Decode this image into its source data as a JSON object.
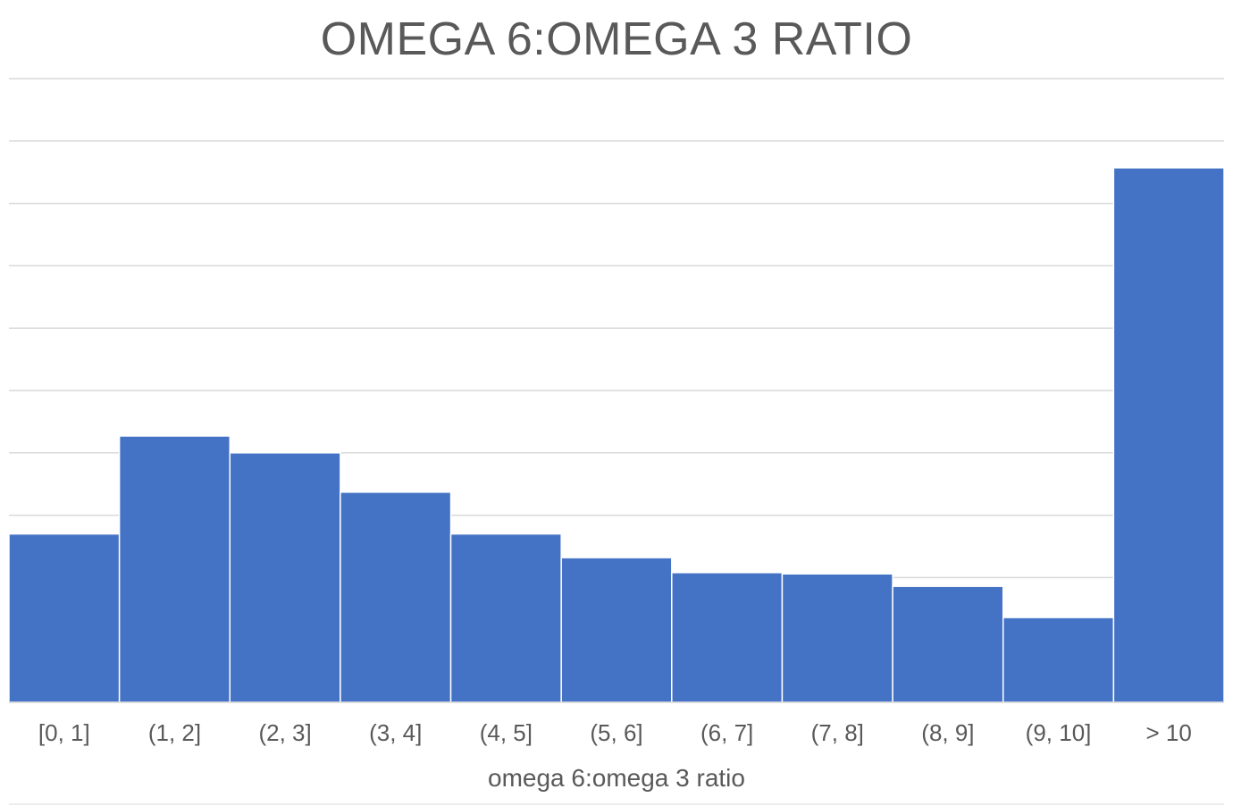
{
  "chart_data": {
    "type": "bar",
    "title": "OMEGA 6:OMEGA 3 RATIO",
    "xlabel": "omega 6:omega 3 ratio",
    "ylabel": "",
    "categories": [
      "[0, 1]",
      "(1, 2]",
      "(2, 3]",
      "(3, 4]",
      "(4, 5]",
      "(5, 6]",
      "(6, 7]",
      "(7, 8]",
      "(8, 9]",
      "(9, 10]",
      "> 10"
    ],
    "values": [
      2.7,
      4.27,
      4.0,
      3.37,
      2.7,
      2.32,
      2.08,
      2.06,
      1.86,
      1.36,
      8.57
    ],
    "ylim": [
      0,
      10
    ],
    "y_gridlines": 10,
    "y_tick_labels_shown": false,
    "grid": true,
    "bar_gap": 0,
    "legend": "none",
    "colors": {
      "bar": "#4472C4",
      "grid": "#D9D9D9",
      "text": "#595959",
      "axis": "#D9D9D9"
    }
  }
}
